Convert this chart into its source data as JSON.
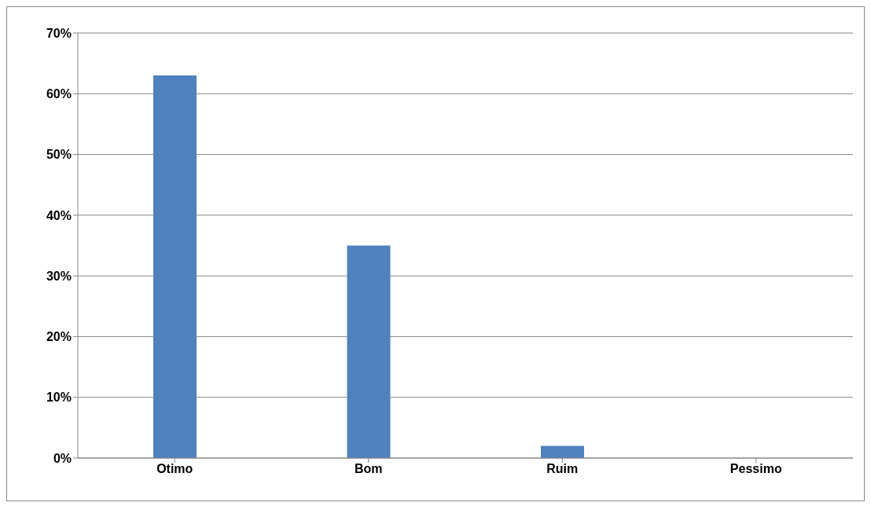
{
  "chart_data": {
    "type": "bar",
    "categories": [
      "Otimo",
      "Bom",
      "Ruim",
      "Pessimo"
    ],
    "values": [
      63,
      35,
      2,
      0
    ],
    "color": "#4f81bd",
    "ylim": [
      0,
      70
    ],
    "yticks": [
      {
        "value": 0,
        "label": "0%"
      },
      {
        "value": 10,
        "label": "10%"
      },
      {
        "value": 20,
        "label": "20%"
      },
      {
        "value": 30,
        "label": "30%"
      },
      {
        "value": 40,
        "label": "40%"
      },
      {
        "value": 50,
        "label": "50%"
      },
      {
        "value": 60,
        "label": "60%"
      },
      {
        "value": 70,
        "label": "70%"
      }
    ],
    "grid": "y",
    "legend": false
  }
}
